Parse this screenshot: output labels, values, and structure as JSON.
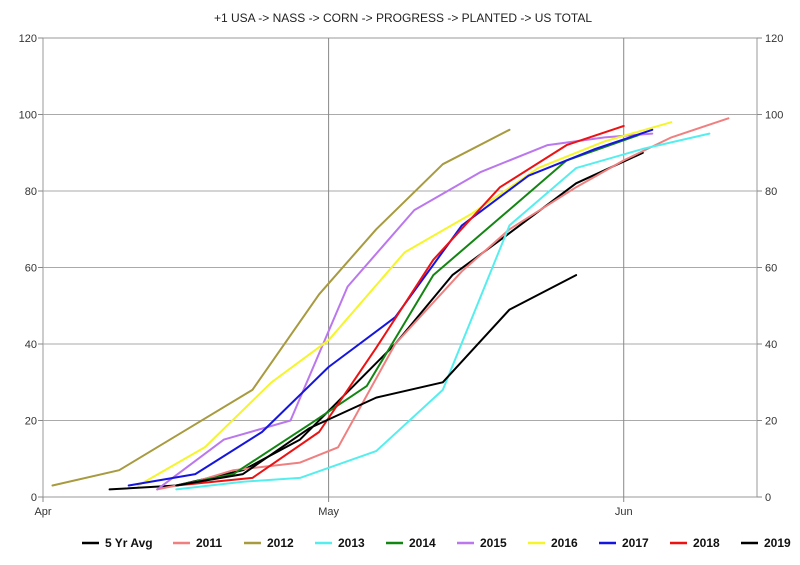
{
  "chart_data": {
    "type": "line",
    "title": "+1 USA -> NASS -> CORN -> PROGRESS -> PLANTED -> US TOTAL",
    "xlabel": "",
    "ylabel": "",
    "x_tick_labels": [
      "Apr",
      "May",
      "Jun"
    ],
    "y_ticks": [
      0,
      20,
      40,
      60,
      80,
      100,
      120
    ],
    "ylim": [
      0,
      120
    ],
    "x_domain_days": [
      0,
      75
    ],
    "x_tick_days": [
      0,
      30,
      61
    ],
    "grid": true,
    "legend_position": "bottom",
    "series": [
      {
        "name": "5 Yr Avg",
        "color": "#000000",
        "x": [
          7,
          14,
          21,
          27,
          31,
          37,
          43,
          49,
          56,
          63
        ],
        "y": [
          2,
          3,
          7,
          15,
          25,
          40,
          58,
          69,
          82,
          90
        ]
      },
      {
        "name": "2011",
        "color": "#f07f7f",
        "x": [
          12,
          16,
          20,
          27,
          31,
          37,
          44,
          49,
          56,
          61,
          66,
          72
        ],
        "y": [
          2,
          4,
          7,
          9,
          13,
          40,
          59,
          70,
          81,
          88,
          94,
          99
        ]
      },
      {
        "name": "2012",
        "color": "#a89a3e",
        "x": [
          1,
          8,
          16,
          22,
          29,
          35,
          42,
          49
        ],
        "y": [
          3,
          7,
          19,
          28,
          53,
          70,
          87,
          96
        ]
      },
      {
        "name": "2013",
        "color": "#55eeee",
        "x": [
          14,
          21,
          27,
          35,
          42,
          49,
          56,
          63,
          70
        ],
        "y": [
          2,
          4,
          5,
          12,
          28,
          71,
          86,
          91,
          95
        ]
      },
      {
        "name": "2014",
        "color": "#128512",
        "x": [
          14,
          20,
          28,
          34,
          41,
          48,
          55,
          63
        ],
        "y": [
          3,
          6,
          19,
          29,
          58,
          73,
          88,
          95
        ]
      },
      {
        "name": "2015",
        "color": "#bb77ee",
        "x": [
          12,
          19,
          26,
          32,
          39,
          46,
          53,
          59,
          64
        ],
        "y": [
          2,
          15,
          20,
          55,
          75,
          85,
          92,
          94,
          95
        ]
      },
      {
        "name": "2016",
        "color": "#f5f52a",
        "x": [
          10,
          17,
          24,
          30,
          38,
          45,
          52,
          59,
          66
        ],
        "y": [
          3,
          13,
          30,
          41,
          64,
          74,
          86,
          93,
          98
        ]
      },
      {
        "name": "2017",
        "color": "#1515e0",
        "x": [
          9,
          16,
          23,
          30,
          37,
          44,
          51,
          58,
          64
        ],
        "y": [
          3,
          6,
          17,
          34,
          47,
          71,
          84,
          91,
          96
        ]
      },
      {
        "name": "2018",
        "color": "#ee1111",
        "x": [
          14,
          22,
          29,
          35,
          41,
          48,
          55,
          61
        ],
        "y": [
          3,
          5,
          17,
          39,
          62,
          81,
          92,
          97
        ]
      },
      {
        "name": "2019",
        "color": "#000000",
        "x": [
          14,
          21,
          28,
          35,
          42,
          49,
          56
        ],
        "y": [
          3,
          6,
          18,
          26,
          30,
          49,
          58
        ]
      }
    ]
  }
}
